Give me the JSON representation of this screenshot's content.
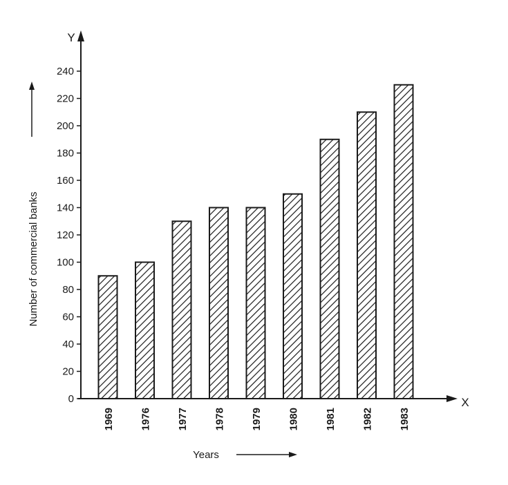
{
  "chart_data": {
    "type": "bar",
    "categories": [
      "1969",
      "1976",
      "1977",
      "1978",
      "1979",
      "1980",
      "1981",
      "1982",
      "1983"
    ],
    "values": [
      90,
      100,
      130,
      140,
      140,
      150,
      190,
      210,
      230
    ],
    "xlabel": "Years",
    "ylabel": "Number of commercial banks",
    "x_axis_letter": "X",
    "y_axis_letter": "Y",
    "ylim": [
      0,
      240
    ],
    "yticks": [
      "0",
      "20",
      "40",
      "60",
      "80",
      "100",
      "120",
      "140",
      "160",
      "180",
      "200",
      "220",
      "240"
    ],
    "grid": false,
    "legend": "none",
    "bar_fill": "diagonal-hatch",
    "colors": {
      "ink": "#1a1a1a",
      "background": "#ffffff"
    }
  }
}
